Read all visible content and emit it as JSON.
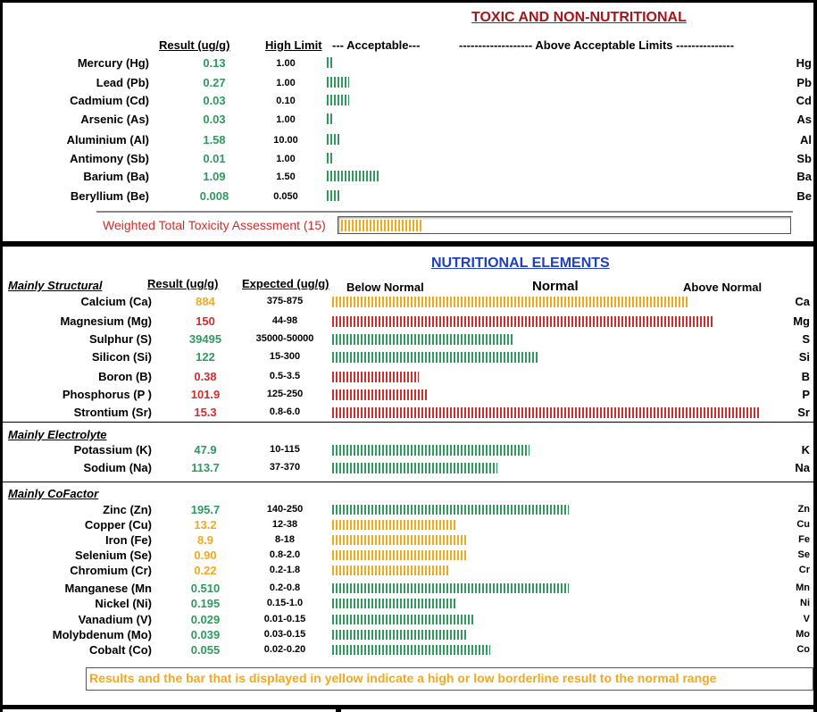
{
  "colors": {
    "green": "#2e9a5e",
    "red": "#d12d2d",
    "orange": "#f1a91b",
    "title_red": "#a3171b",
    "title_blue": "#1f3fc4"
  },
  "toxic": {
    "title": "TOXIC AND NON-NUTRITIONAL",
    "col_result": "Result (ug/g)",
    "col_limit": "High Limit",
    "col_acceptable": "--- Acceptable---",
    "col_above": "------------------- Above Acceptable Limits ---------------",
    "rows": [
      {
        "name": "Mercury (Hg)",
        "result": "0.13",
        "limit": "1.00",
        "symbol": "Hg",
        "color": "green",
        "bar_fraction": 0.013
      },
      {
        "name": "Lead (Pb)",
        "result": "0.27",
        "limit": "1.00",
        "symbol": "Pb",
        "color": "green",
        "bar_fraction": 0.05
      },
      {
        "name": "Cadmium (Cd)",
        "result": "0.03",
        "limit": "0.10",
        "symbol": "Cd",
        "color": "green",
        "bar_fraction": 0.05
      },
      {
        "name": "Arsenic (As)",
        "result": "0.03",
        "limit": "1.00",
        "symbol": "As",
        "color": "green",
        "bar_fraction": 0.013
      },
      {
        "name": "Aluminium (Al)",
        "result": "1.58",
        "limit": "10.00",
        "symbol": "Al",
        "color": "green",
        "bar_fraction": 0.027
      },
      {
        "name": "Antimony (Sb)",
        "result": "0.01",
        "limit": "1.00",
        "symbol": "Sb",
        "color": "green",
        "bar_fraction": 0.013
      },
      {
        "name": "Barium (Ba)",
        "result": "1.09",
        "limit": "1.50",
        "symbol": "Ba",
        "color": "green",
        "bar_fraction": 0.115
      },
      {
        "name": "Beryllium (Be)",
        "result": "0.008",
        "limit": "0.050",
        "symbol": "Be",
        "color": "green",
        "bar_fraction": 0.027
      }
    ],
    "weighted_label": "Weighted Total Toxicity Assessment (15)",
    "weighted_fraction": 0.18
  },
  "nutritional": {
    "title": "NUTRITIONAL ELEMENTS",
    "col_result": "Result (ug/g)",
    "col_expected": "Expected (ug/g)",
    "col_below": "Below Normal",
    "col_normal": "Normal",
    "col_above": "Above  Normal",
    "groups": [
      {
        "title": "Mainly Structural",
        "rows": [
          {
            "name": "Calcium (Ca)",
            "result": "884",
            "expected": "375-875",
            "symbol": "Ca",
            "color": "orange",
            "bar_fraction": 0.83
          },
          {
            "name": "Magnesium (Mg)",
            "result": "150",
            "expected": "44-98",
            "symbol": "Mg",
            "color": "red",
            "bar_fraction": 0.887
          },
          {
            "name": "Sulphur (S)",
            "result": "39495",
            "expected": "35000-50000",
            "symbol": "S",
            "color": "green",
            "bar_fraction": 0.425
          },
          {
            "name": "Silicon (Si)",
            "result": "122",
            "expected": "15-300",
            "symbol": "Si",
            "color": "green",
            "bar_fraction": 0.48
          },
          {
            "name": "Boron (B)",
            "result": "0.38",
            "expected": "0.5-3.5",
            "symbol": "B",
            "color": "red",
            "bar_fraction": 0.203
          },
          {
            "name": "Phosphorus (P )",
            "result": "101.9",
            "expected": "125-250",
            "symbol": "P",
            "color": "red",
            "bar_fraction": 0.223
          },
          {
            "name": "Strontium (Sr)",
            "result": "15.3",
            "expected": "0.8-6.0",
            "symbol": "Sr",
            "color": "red",
            "bar_fraction": 1.0
          }
        ]
      },
      {
        "title": "Mainly Electrolyte",
        "rows": [
          {
            "name": "Potassium (K)",
            "result": "47.9",
            "expected": "10-115",
            "symbol": "K",
            "color": "green",
            "bar_fraction": 0.46
          },
          {
            "name": "Sodium (Na)",
            "result": "113.7",
            "expected": "37-370",
            "symbol": "Na",
            "color": "green",
            "bar_fraction": 0.385
          }
        ]
      },
      {
        "title": "Mainly CoFactor",
        "rows": [
          {
            "name": "Zinc (Zn)",
            "result": "195.7",
            "expected": "140-250",
            "symbol": "Zn",
            "color": "green",
            "bar_fraction": 0.552
          },
          {
            "name": "Copper (Cu)",
            "result": "13.2",
            "expected": "12-38",
            "symbol": "Cu",
            "color": "orange",
            "bar_fraction": 0.29
          },
          {
            "name": "Iron (Fe)",
            "result": "8.9",
            "expected": "8-18",
            "symbol": "Fe",
            "color": "orange",
            "bar_fraction": 0.313
          },
          {
            "name": "Selenium (Se)",
            "result": "0.90",
            "expected": "0.8-2.0",
            "symbol": "Se",
            "color": "orange",
            "bar_fraction": 0.313
          },
          {
            "name": "Chromium (Cr)",
            "result": "0.22",
            "expected": "0.2-1.8",
            "symbol": "Cr",
            "color": "orange",
            "bar_fraction": 0.275
          },
          {
            "name": "Manganese (Mn",
            "result": "0.510",
            "expected": "0.2-0.8",
            "symbol": "Mn",
            "color": "green",
            "bar_fraction": 0.552
          },
          {
            "name": "Nickel (Ni)",
            "result": "0.195",
            "expected": "0.15-1.0",
            "symbol": "Ni",
            "color": "green",
            "bar_fraction": 0.29
          },
          {
            "name": "Vanadium (V)",
            "result": "0.029",
            "expected": "0.01-0.15",
            "symbol": "V",
            "color": "green",
            "bar_fraction": 0.33
          },
          {
            "name": "Molybdenum (Mo)",
            "result": "0.039",
            "expected": "0.03-0.15",
            "symbol": "Mo",
            "color": "green",
            "bar_fraction": 0.313
          },
          {
            "name": "Cobalt (Co)",
            "result": "0.055",
            "expected": "0.02-0.20",
            "symbol": "Co",
            "color": "green",
            "bar_fraction": 0.368
          }
        ]
      }
    ]
  },
  "footer_note": "Results and the bar that is displayed in yellow indicate a high or low borderline result to the normal range"
}
